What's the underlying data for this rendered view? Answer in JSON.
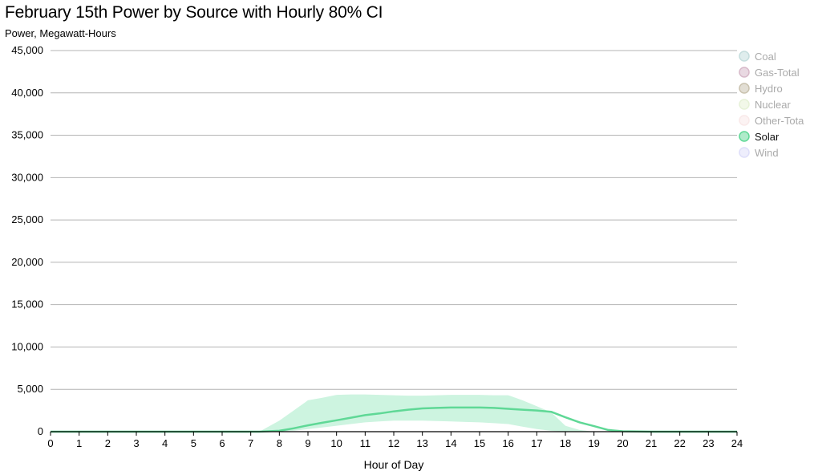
{
  "chart_data": {
    "type": "line",
    "title": "February 15th Power by Source with Hourly 80% CI",
    "subtitle": "Power, Megawatt-Hours",
    "xlabel": "Hour of Day",
    "ylabel": "",
    "xlim": [
      0,
      24
    ],
    "ylim": [
      0,
      45000
    ],
    "x_ticks": [
      "0",
      "1",
      "2",
      "3",
      "4",
      "5",
      "6",
      "7",
      "8",
      "9",
      "10",
      "11",
      "12",
      "13",
      "14",
      "15",
      "16",
      "17",
      "18",
      "19",
      "20",
      "21",
      "22",
      "23",
      "24"
    ],
    "y_ticks": [
      "0",
      "5,000",
      "10,000",
      "15,000",
      "20,000",
      "25,000",
      "30,000",
      "35,000",
      "40,000",
      "45,000"
    ],
    "y_tick_values": [
      0,
      5000,
      10000,
      15000,
      20000,
      25000,
      30000,
      35000,
      40000,
      45000
    ],
    "grid": "horizontal",
    "legend_position": "right",
    "legend": [
      {
        "name": "Coal",
        "color": "#7fb5b5",
        "active": false
      },
      {
        "name": "Gas-Total",
        "color": "#a8668a",
        "active": false
      },
      {
        "name": "Hydro",
        "color": "#8a7a50",
        "active": false
      },
      {
        "name": "Nuclear",
        "color": "#c9e2a8",
        "active": false
      },
      {
        "name": "Other-Tota",
        "color": "#f2cfcf",
        "active": false
      },
      {
        "name": "Solar",
        "color": "#5fd896",
        "active": true
      },
      {
        "name": "Wind",
        "color": "#b8b8f2",
        "active": false
      }
    ],
    "series": [
      {
        "name": "Solar",
        "color": "#5fd896",
        "band_color": "#cdf4e0",
        "x": [
          0,
          1,
          2,
          3,
          4,
          5,
          6,
          7,
          7.3,
          8,
          8.5,
          9,
          9.5,
          10,
          10.5,
          11,
          11.5,
          12,
          12.5,
          13,
          13.5,
          14,
          14.5,
          15,
          15.5,
          16,
          16.5,
          17,
          17.5,
          18,
          18.5,
          19,
          19.5,
          20,
          21,
          22,
          23,
          24
        ],
        "values": [
          0,
          0,
          0,
          0,
          0,
          0,
          0,
          0,
          0,
          100,
          400,
          750,
          1050,
          1350,
          1650,
          1950,
          2150,
          2400,
          2600,
          2750,
          2800,
          2850,
          2850,
          2850,
          2800,
          2700,
          2600,
          2500,
          2350,
          1700,
          1100,
          650,
          200,
          50,
          0,
          0,
          0,
          0
        ],
        "ci_lower": [
          0,
          0,
          0,
          0,
          0,
          0,
          0,
          0,
          0,
          0,
          100,
          300,
          500,
          700,
          900,
          1100,
          1200,
          1300,
          1300,
          1300,
          1250,
          1200,
          1150,
          1100,
          1000,
          900,
          600,
          300,
          100,
          0,
          0,
          0,
          0,
          0,
          0,
          0,
          0,
          0
        ],
        "ci_upper": [
          0,
          0,
          0,
          0,
          0,
          0,
          0,
          0,
          0,
          1300,
          2500,
          3700,
          4000,
          4350,
          4400,
          4400,
          4350,
          4300,
          4250,
          4250,
          4300,
          4350,
          4350,
          4350,
          4300,
          4300,
          3700,
          3000,
          2300,
          700,
          200,
          0,
          0,
          0,
          0,
          0,
          0,
          0
        ]
      }
    ]
  }
}
